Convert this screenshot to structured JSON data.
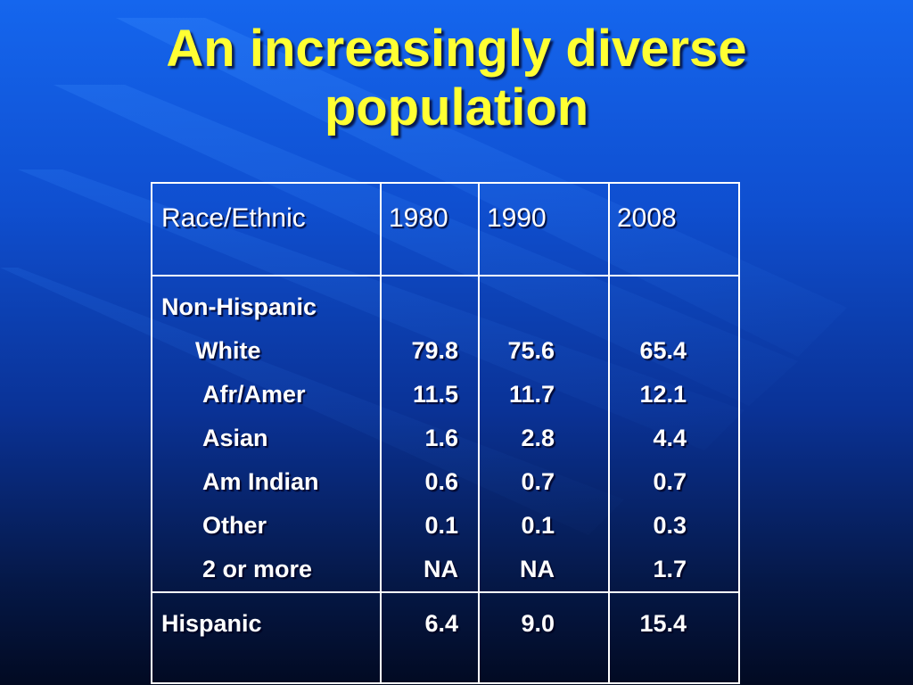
{
  "slide": {
    "title_line1": "An increasingly diverse",
    "title_line2": "population",
    "title_color": "#ffff33",
    "background_top": "#1566ee",
    "background_bottom": "#020a22"
  },
  "table": {
    "headers": {
      "category": "Race/Ethnic",
      "y1980": "1980",
      "y1990": "1990",
      "y2008": "2008"
    },
    "group_label": "Non-Hispanic",
    "rows": [
      {
        "label": "White",
        "y1980": "79.8",
        "y1990": "75.6",
        "y2008": "65.4"
      },
      {
        "label": "Afr/Amer",
        "y1980": "11.5",
        "y1990": "11.7",
        "y2008": "12.1"
      },
      {
        "label": "Asian",
        "y1980": "1.6",
        "y1990": "2.8",
        "y2008": "4.4"
      },
      {
        "label": "Am Indian",
        "y1980": "0.6",
        "y1990": "0.7",
        "y2008": "0.7"
      },
      {
        "label": "Other",
        "y1980": "0.1",
        "y1990": "0.1",
        "y2008": "0.3"
      },
      {
        "label": "2 or more",
        "y1980": "NA",
        "y1990": "NA",
        "y2008": "1.7"
      }
    ],
    "hispanic": {
      "label": "Hispanic",
      "y1980": "6.4",
      "y1990": "9.0",
      "y2008": "15.4"
    }
  }
}
